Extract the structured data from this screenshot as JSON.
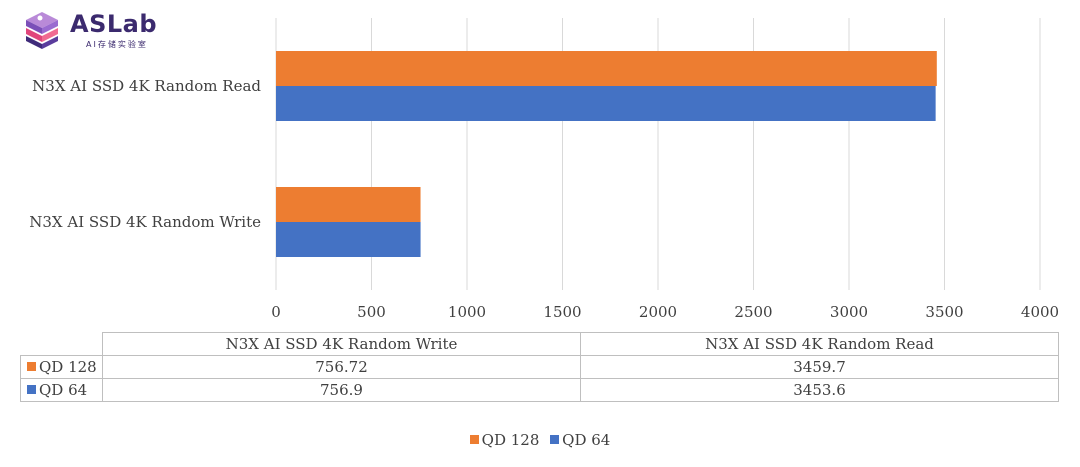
{
  "logo": {
    "brand": "ASLab",
    "subtitle": "AI存储实验室"
  },
  "colors": {
    "qd128": "#ED7D31",
    "qd64": "#4472C4",
    "grid": "#D9D9D9",
    "table_border": "#BFBFBF"
  },
  "chart_data": {
    "type": "bar",
    "orientation": "horizontal",
    "title": "",
    "xlabel": "",
    "ylabel": "",
    "categories": [
      "N3X AI SSD 4K Random Read",
      "N3X AI SSD 4K Random Write"
    ],
    "series": [
      {
        "name": "QD 128",
        "values": [
          3459.7,
          756.72
        ]
      },
      {
        "name": "QD 64",
        "values": [
          3453.6,
          756.9
        ]
      }
    ],
    "xlim": [
      0,
      4000
    ],
    "x_ticks": [
      "0",
      "500",
      "1000",
      "1500",
      "2000",
      "2500",
      "3000",
      "3500",
      "4000"
    ],
    "grid": true,
    "legend": "bottom"
  },
  "table": {
    "headers": [
      "N3X AI SSD 4K Random Write",
      "N3X AI SSD 4K Random Read"
    ],
    "rows": [
      {
        "series": "QD 128",
        "values": [
          "756.72",
          "3459.7"
        ]
      },
      {
        "series": "QD 64",
        "values": [
          "756.9",
          "3453.6"
        ]
      }
    ]
  },
  "legend": {
    "items": [
      "QD 128",
      "QD 64"
    ]
  }
}
